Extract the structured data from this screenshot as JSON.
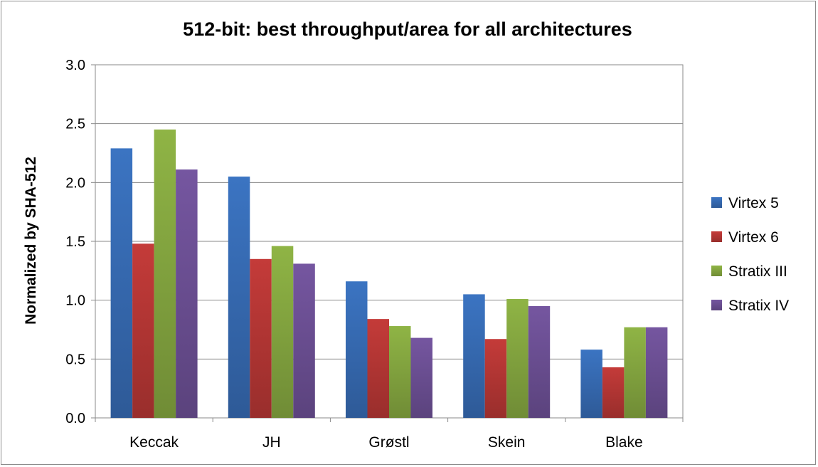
{
  "chart_data": {
    "type": "bar",
    "title": "512-bit: best throughput/area for all architectures",
    "xlabel": "",
    "ylabel": "Normalized by SHA-512",
    "ylim": [
      0,
      3.0
    ],
    "yticks": [
      "0.0",
      "0.5",
      "1.0",
      "1.5",
      "2.0",
      "2.5",
      "3.0"
    ],
    "grid": true,
    "legend_position": "right",
    "categories": [
      "Keccak",
      "JH",
      "Grøstl",
      "Skein",
      "Blake"
    ],
    "series": [
      {
        "name": "Virtex 5",
        "color": "#3b74c2",
        "values": [
          2.29,
          2.05,
          1.16,
          1.05,
          0.58
        ]
      },
      {
        "name": "Virtex 6",
        "color": "#c43b39",
        "values": [
          1.48,
          1.35,
          0.84,
          0.67,
          0.43
        ]
      },
      {
        "name": "Stratix III",
        "color": "#8fb445",
        "values": [
          2.45,
          1.46,
          0.78,
          1.01,
          0.77
        ]
      },
      {
        "name": "Stratix IV",
        "color": "#7556a0",
        "values": [
          2.11,
          1.31,
          0.68,
          0.95,
          0.77
        ]
      }
    ]
  }
}
